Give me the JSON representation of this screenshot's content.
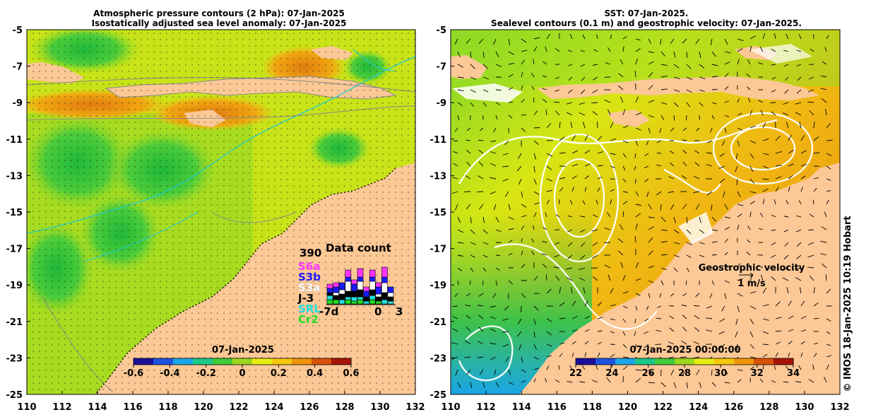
{
  "left_map": {
    "title_line1": "Atmospheric pressure contours (2 hPa): 07-Jan-2025",
    "title_line2": "Isostatically adjusted sea level anomaly: 07-Jan-2025",
    "lat_ticks": [
      "-5",
      "-7",
      "-9",
      "-11",
      "-13",
      "-15",
      "-17",
      "-19",
      "-21",
      "-23",
      "-25"
    ],
    "lon_ticks": [
      "110",
      "112",
      "114",
      "116",
      "118",
      "120",
      "122",
      "124",
      "126",
      "128",
      "130",
      "132"
    ],
    "colorbar": {
      "date_label": "07-Jan-2025",
      "ticks": [
        "-0.6",
        "-0.4",
        "-0.2",
        "0",
        "0.2",
        "0.4",
        "0.6"
      ],
      "colors": [
        "#1a0e9a",
        "#1f52e0",
        "#1aa6e8",
        "#1cc98a",
        "#3fcc3a",
        "#9ad81c",
        "#e6ec10",
        "#f5c80c",
        "#f0940a",
        "#d9520a",
        "#a8140a"
      ]
    },
    "data_count": {
      "max_label": "390",
      "title": "Data count",
      "missions": [
        {
          "name": "S6a",
          "color": "#ff33ff"
        },
        {
          "name": "S3b",
          "color": "#1a1aff"
        },
        {
          "name": "S3a",
          "color": "#ffffff"
        },
        {
          "name": "J-3",
          "color": "#000000"
        },
        {
          "name": "SRL",
          "color": "#22dddd"
        },
        {
          "name": "Cr2",
          "color": "#22dd22"
        }
      ],
      "x_left": "-7d",
      "x_mid": "0",
      "x_right": "3"
    }
  },
  "right_map": {
    "title_line1": "SST: 07-Jan-2025.",
    "title_line2": "Sealevel contours (0.1 m) and geostrophic velocity: 07-Jan-2025.",
    "lat_ticks": [
      "-5",
      "-7",
      "-9",
      "-11",
      "-13",
      "-15",
      "-17",
      "-19",
      "-21",
      "-23",
      "-25"
    ],
    "lon_ticks": [
      "110",
      "112",
      "114",
      "116",
      "118",
      "120",
      "122",
      "124",
      "126",
      "128",
      "130",
      "132"
    ],
    "colorbar": {
      "date_label": "07-Jan-2025 00:00:00",
      "ticks": [
        "22",
        "24",
        "26",
        "28",
        "30",
        "32",
        "34"
      ],
      "colors": [
        "#1a0e9a",
        "#1f52e0",
        "#1aa6e8",
        "#1cc98a",
        "#3fcc3a",
        "#9ad81c",
        "#e6ec10",
        "#f5c80c",
        "#f0940a",
        "#d9520a",
        "#a8140a"
      ]
    },
    "velocity_legend": {
      "title": "Geostrophic velocity",
      "scale": "1 m/s"
    }
  },
  "credit": "© IMOS 18-Jan-2025 10:19 Hobart",
  "colors": {
    "land": "#fbc896",
    "green": "#38cc3c",
    "yellowgreen": "#b8e21a",
    "orange": "#f5ac10"
  }
}
